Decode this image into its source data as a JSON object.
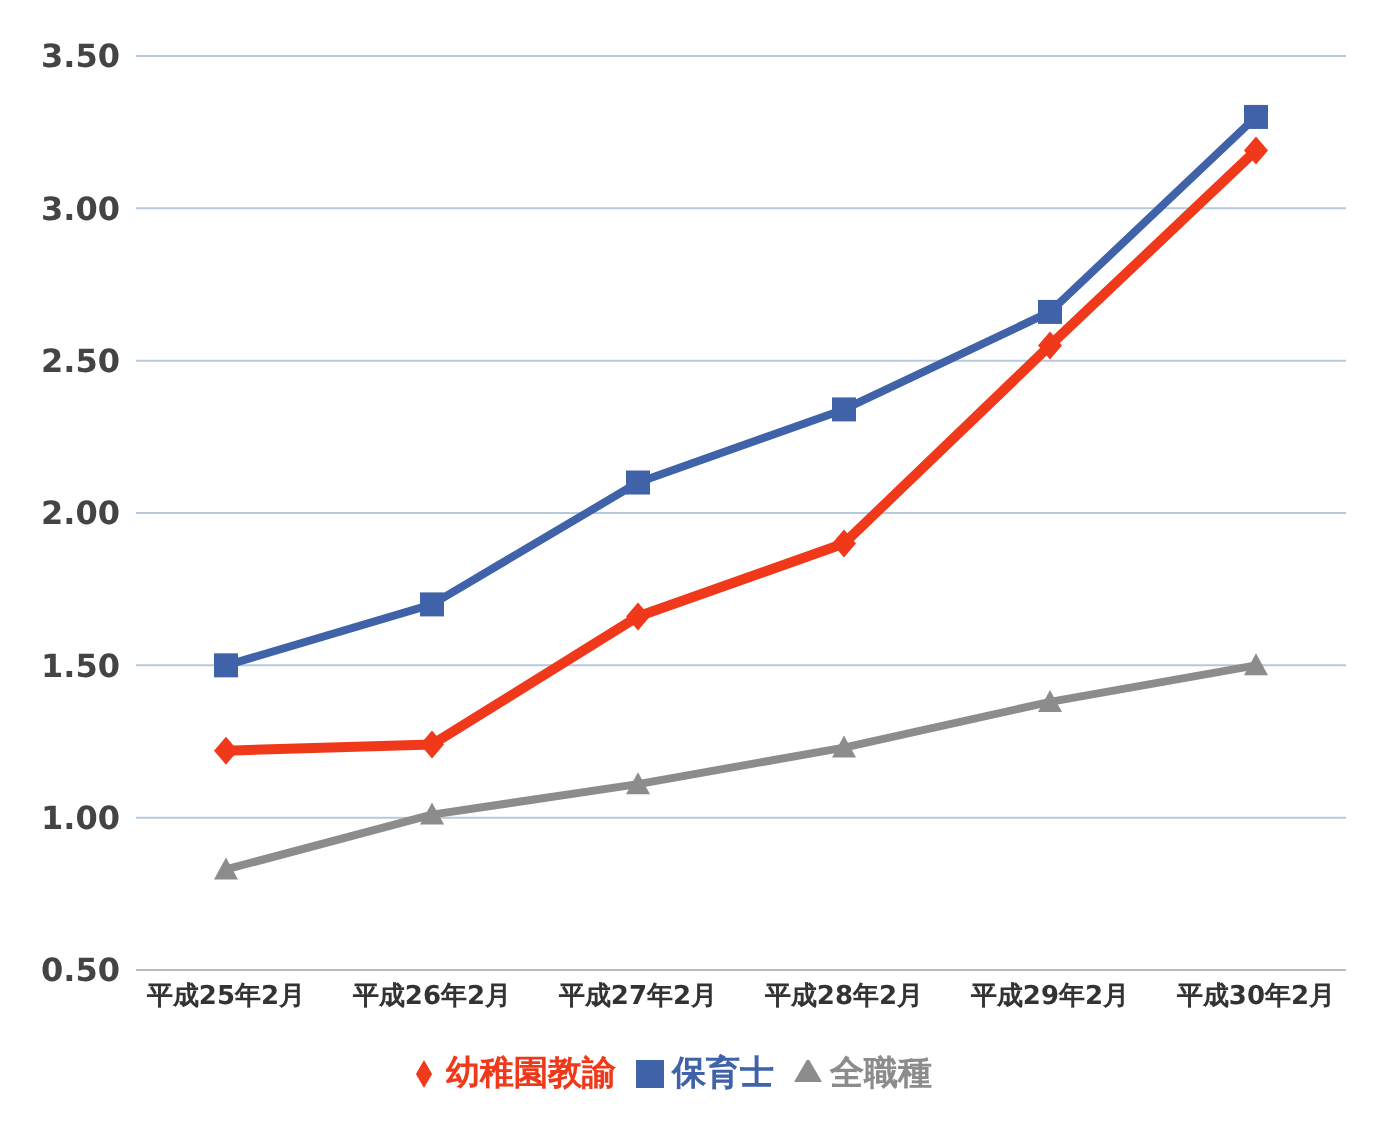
{
  "chart_data": {
    "type": "line",
    "categories": [
      "平成25年2月",
      "平成26年2月",
      "平成27年2月",
      "平成28年2月",
      "平成29年2月",
      "平成30年2月"
    ],
    "series": [
      {
        "name": "幼稚園教諭",
        "color": "#f0391a",
        "marker": "diamond",
        "values": [
          1.22,
          1.24,
          1.66,
          1.9,
          2.55,
          3.19
        ]
      },
      {
        "name": "保育士",
        "color": "#3f62a8",
        "marker": "square",
        "values": [
          1.5,
          1.7,
          2.1,
          2.34,
          2.66,
          3.3
        ]
      },
      {
        "name": "全職種",
        "color": "#8c8c8c",
        "marker": "triangle",
        "values": [
          0.83,
          1.01,
          1.11,
          1.23,
          1.38,
          1.5
        ]
      }
    ],
    "ylim": [
      0.5,
      3.5
    ],
    "yticks": [
      {
        "value": 0.5,
        "label": "0.50"
      },
      {
        "value": 1,
        "label": "1.00"
      },
      {
        "value": 1.5,
        "label": "1.50"
      },
      {
        "value": 2,
        "label": "2.00"
      },
      {
        "value": 2.5,
        "label": "2.50"
      },
      {
        "value": 3,
        "label": "3.00"
      },
      {
        "value": 3.5,
        "label": "3.50"
      }
    ],
    "grid": "y",
    "legend": "bottom",
    "line_style": "solid"
  }
}
